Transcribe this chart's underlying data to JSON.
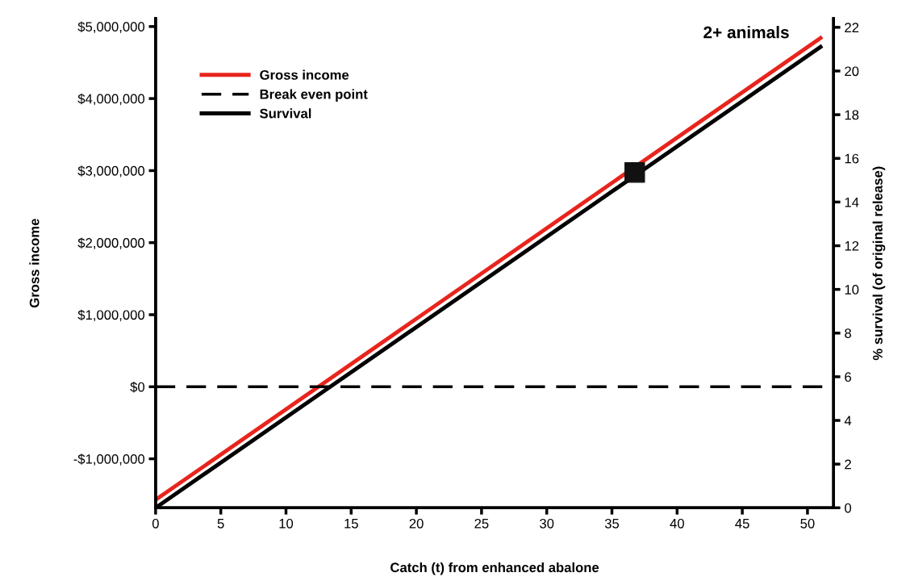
{
  "chart_data": {
    "type": "line",
    "title": "2+ animals",
    "xlabel": "Catch (t) from enhanced abalone",
    "ylabel": "Gross income",
    "y2label": "% survival (of original release)",
    "xlim": [
      0,
      52
    ],
    "xticks": [
      0,
      5,
      10,
      15,
      20,
      25,
      30,
      35,
      40,
      45,
      50
    ],
    "ylim": [
      -1680000,
      5110000
    ],
    "yticks": [
      {
        "value": -1000000,
        "label": "-$1,000,000"
      },
      {
        "value": 0,
        "label": "$0"
      },
      {
        "value": 1000000,
        "label": "$1,000,000"
      },
      {
        "value": 2000000,
        "label": "$2,000,000"
      },
      {
        "value": 3000000,
        "label": "$3,000,000"
      },
      {
        "value": 4000000,
        "label": "$4,000,000"
      },
      {
        "value": 5000000,
        "label": "$5,000,000"
      }
    ],
    "y2lim": [
      0,
      22.4
    ],
    "y2ticks": [
      0,
      2,
      4,
      6,
      8,
      10,
      12,
      14,
      16,
      18,
      20,
      22
    ],
    "series": [
      {
        "name": "Gross income",
        "color": "#e8251c",
        "x": [
          0,
          51
        ],
        "values": [
          -1570000,
          4840000
        ]
      },
      {
        "name": "Survival",
        "color": "#000000",
        "axis": "y2",
        "x": [
          0,
          51
        ],
        "values": [
          0,
          21.1
        ]
      },
      {
        "type": "scatter",
        "color": "#111111",
        "axis": "y2",
        "marker": "square",
        "x": [
          36.75
        ],
        "values": [
          15.35
        ]
      }
    ],
    "ref_lines": [
      {
        "axis": "y",
        "value": 0,
        "label": "Break even point",
        "color": "#000000",
        "line_style": "dashed"
      }
    ],
    "grid": false,
    "legend": "top left"
  }
}
